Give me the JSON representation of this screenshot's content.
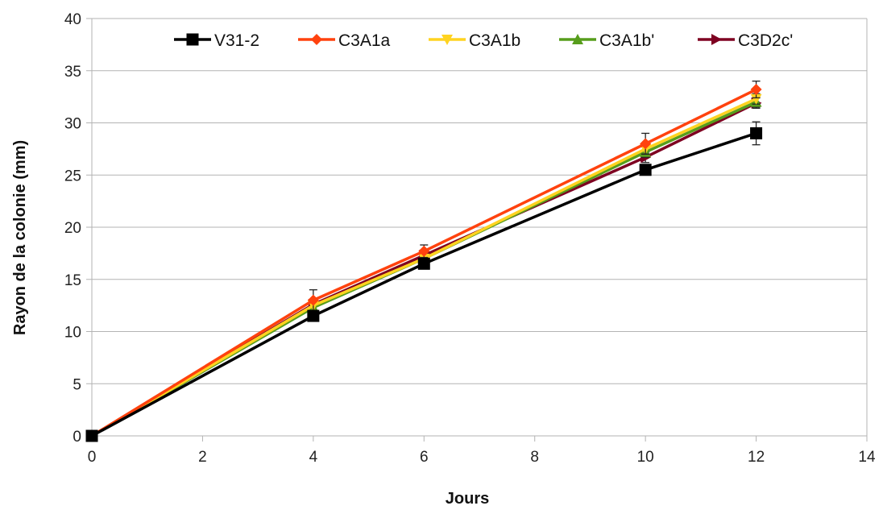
{
  "chart_data": {
    "type": "line",
    "xlabel": "Jours",
    "ylabel": "Rayon de la colonie (mm)",
    "xlim": [
      0,
      14
    ],
    "ylim": [
      0,
      40
    ],
    "x_ticks": [
      "0",
      "2",
      "4",
      "6",
      "8",
      "10",
      "12",
      "14"
    ],
    "y_ticks": [
      "0",
      "5",
      "10",
      "15",
      "20",
      "25",
      "30",
      "35",
      "40"
    ],
    "grid": "horizontal",
    "legend_position": "top",
    "x": [
      0,
      4,
      6,
      10,
      12
    ],
    "series": [
      {
        "name": "V31-2",
        "color": "#000000",
        "marker": "square",
        "values": [
          0,
          11.5,
          16.5,
          25.5,
          29.0
        ],
        "errors": [
          0,
          0.3,
          0.3,
          0.3,
          1.1
        ]
      },
      {
        "name": "C3A1a",
        "color": "#ff420e",
        "marker": "diamond",
        "values": [
          0,
          13.0,
          17.7,
          28.0,
          33.2
        ],
        "errors": [
          0,
          1.0,
          0.6,
          1.0,
          0.8
        ]
      },
      {
        "name": "C3A1b",
        "color": "#ffd320",
        "marker": "triangle-down",
        "values": [
          0,
          12.5,
          17.0,
          27.5,
          32.3
        ],
        "errors": [
          0,
          0.5,
          0.5,
          0.5,
          0.5
        ]
      },
      {
        "name": "C3A1b'",
        "color": "#579d1c",
        "marker": "triangle-up",
        "values": [
          0,
          12.3,
          17.0,
          27.2,
          32.0
        ],
        "errors": [
          0,
          0.5,
          0.5,
          0.5,
          0.5
        ]
      },
      {
        "name": "C3D2c'",
        "color": "#7e0021",
        "marker": "triangle-right",
        "values": [
          0,
          12.6,
          17.3,
          26.7,
          31.9
        ],
        "errors": [
          0,
          0.5,
          0.5,
          0.5,
          0.5
        ]
      }
    ]
  }
}
